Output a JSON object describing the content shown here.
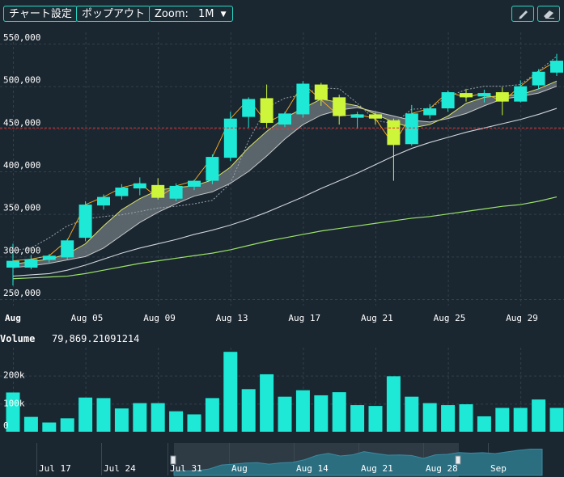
{
  "toolbar": {
    "chart_settings": "チャート設定",
    "popout": "ポップアウト",
    "zoom_label": "Zoom:",
    "zoom_value": "1M",
    "pencil_icon": "pencil-icon",
    "eraser_icon": "eraser-icon"
  },
  "colors": {
    "background": "#1a2630",
    "up": "#1de9d6",
    "down": "#cdf53a",
    "grid": "#33414b",
    "price_line": "#e53030",
    "ma_short": "#ffb020",
    "ma_mid_light": "#cfd5da",
    "ma_long": "#9be36a",
    "ribbon": "#9aa3aa"
  },
  "volume": {
    "label": "Volume",
    "value": "79,869.21091214"
  },
  "chart_data": {
    "type": "candlestick",
    "title": "",
    "y_ticks": [
      "550,000",
      "500,000",
      "450,000",
      "400,000",
      "350,000",
      "300,000",
      "250,000"
    ],
    "y_tick_values": [
      550000,
      500000,
      450000,
      400000,
      350000,
      300000,
      250000
    ],
    "ylim": [
      242000,
      558000
    ],
    "x_ticks": [
      "Aug",
      "Aug 05",
      "Aug 09",
      "Aug 13",
      "Aug 17",
      "Aug 21",
      "Aug 25",
      "Aug 29"
    ],
    "x_tick_days": [
      1,
      5,
      9,
      13,
      17,
      21,
      25,
      29
    ],
    "current_price_line": 451000,
    "candles": [
      {
        "day": 1,
        "o": 287000,
        "h": 315000,
        "l": 266000,
        "c": 295000,
        "v": 140000
      },
      {
        "day": 2,
        "o": 287000,
        "h": 302000,
        "l": 285000,
        "c": 297000,
        "v": 53000
      },
      {
        "day": 3,
        "o": 296000,
        "h": 303000,
        "l": 293000,
        "c": 301000,
        "v": 33000
      },
      {
        "day": 4,
        "o": 299000,
        "h": 321000,
        "l": 296000,
        "c": 319000,
        "v": 48000
      },
      {
        "day": 5,
        "o": 322000,
        "h": 365000,
        "l": 318000,
        "c": 361000,
        "v": 122000
      },
      {
        "day": 6,
        "o": 360000,
        "h": 373000,
        "l": 355000,
        "c": 370000,
        "v": 120000
      },
      {
        "day": 7,
        "o": 371000,
        "h": 385000,
        "l": 367000,
        "c": 381000,
        "v": 83000
      },
      {
        "day": 8,
        "o": 380000,
        "h": 393000,
        "l": 372000,
        "c": 386000,
        "v": 102000
      },
      {
        "day": 9,
        "o": 384000,
        "h": 392000,
        "l": 367000,
        "c": 369000,
        "v": 102000
      },
      {
        "day": 10,
        "o": 368000,
        "h": 386000,
        "l": 365000,
        "c": 383000,
        "v": 73000
      },
      {
        "day": 11,
        "o": 382000,
        "h": 390000,
        "l": 378000,
        "c": 389000,
        "v": 62000
      },
      {
        "day": 12,
        "o": 389000,
        "h": 420000,
        "l": 385000,
        "c": 417000,
        "v": 120000
      },
      {
        "day": 13,
        "o": 416000,
        "h": 470000,
        "l": 412000,
        "c": 462000,
        "v": 285000
      },
      {
        "day": 14,
        "o": 464000,
        "h": 487000,
        "l": 451000,
        "c": 485000,
        "v": 152000
      },
      {
        "day": 15,
        "o": 486000,
        "h": 502000,
        "l": 451000,
        "c": 457000,
        "v": 205000
      },
      {
        "day": 16,
        "o": 455000,
        "h": 470000,
        "l": 452000,
        "c": 468000,
        "v": 125000
      },
      {
        "day": 17,
        "o": 467000,
        "h": 506000,
        "l": 463000,
        "c": 503000,
        "v": 148000
      },
      {
        "day": 18,
        "o": 502000,
        "h": 504000,
        "l": 477000,
        "c": 484000,
        "v": 130000
      },
      {
        "day": 19,
        "o": 487000,
        "h": 490000,
        "l": 455000,
        "c": 465000,
        "v": 141000
      },
      {
        "day": 20,
        "o": 463000,
        "h": 470000,
        "l": 450000,
        "c": 467000,
        "v": 95000
      },
      {
        "day": 21,
        "o": 467000,
        "h": 469000,
        "l": 455000,
        "c": 462000,
        "v": 92000
      },
      {
        "day": 22,
        "o": 460000,
        "h": 462000,
        "l": 389000,
        "c": 431000,
        "v": 198000
      },
      {
        "day": 23,
        "o": 432000,
        "h": 478000,
        "l": 430000,
        "c": 468000,
        "v": 125000
      },
      {
        "day": 24,
        "o": 466000,
        "h": 479000,
        "l": 462000,
        "c": 474000,
        "v": 102000
      },
      {
        "day": 25,
        "o": 474000,
        "h": 495000,
        "l": 470000,
        "c": 493000,
        "v": 95000
      },
      {
        "day": 26,
        "o": 492000,
        "h": 497000,
        "l": 482000,
        "c": 487000,
        "v": 98000
      },
      {
        "day": 27,
        "o": 488000,
        "h": 496000,
        "l": 481000,
        "c": 492000,
        "v": 55000
      },
      {
        "day": 28,
        "o": 493000,
        "h": 499000,
        "l": 466000,
        "c": 482000,
        "v": 85000
      },
      {
        "day": 29,
        "o": 482000,
        "h": 507000,
        "l": 481000,
        "c": 500000,
        "v": 85000
      },
      {
        "day": 30,
        "o": 501000,
        "h": 520000,
        "l": 497000,
        "c": 517000,
        "v": 115000
      },
      {
        "day": 31,
        "o": 516000,
        "h": 538000,
        "l": 512000,
        "c": 530000,
        "v": 85000
      }
    ],
    "ma_short": [
      291000,
      294000,
      297000,
      303000,
      315000,
      336000,
      355000,
      368000,
      378000,
      381000,
      383000,
      390000,
      405000,
      428000,
      447000,
      463000,
      474000,
      485000,
      481000,
      477000,
      467000,
      458000,
      451000,
      455000,
      465000,
      480000,
      487000,
      489000,
      490000,
      497000,
      506000
    ],
    "ma_mid": [
      287000,
      289000,
      292000,
      296000,
      300000,
      310000,
      325000,
      340000,
      352000,
      362000,
      371000,
      376000,
      386000,
      400000,
      418000,
      438000,
      455000,
      466000,
      472000,
      475000,
      470000,
      465000,
      460000,
      458000,
      462000,
      468000,
      477000,
      485000,
      488000,
      492000,
      500000
    ],
    "ma_long": [
      277000,
      278500,
      280000,
      284000,
      290000,
      297000,
      304000,
      310000,
      315000,
      320000,
      326000,
      331000,
      337000,
      344000,
      352000,
      361000,
      370000,
      380000,
      389000,
      398000,
      408000,
      418000,
      427000,
      434000,
      440000,
      446000,
      451000,
      456000,
      461000,
      467000,
      474000
    ],
    "ma_xlong": [
      274000,
      275000,
      276000,
      277000,
      280000,
      284000,
      288000,
      292000,
      295000,
      298000,
      301000,
      304000,
      308000,
      313000,
      318000,
      322000,
      326000,
      330000,
      333000,
      336000,
      339000,
      342000,
      345000,
      347000,
      350000,
      353000,
      356000,
      359000,
      361000,
      365000,
      370000
    ],
    "envelope_upper": [
      307000,
      310000,
      322000,
      336000,
      344000,
      347000,
      349000,
      353000,
      357000,
      359000,
      362000,
      366000,
      386000,
      436000,
      475000,
      486000,
      490000,
      498000,
      497000,
      480000,
      460000,
      456000,
      473000,
      474000,
      488000,
      496000,
      500000,
      500000,
      502000,
      518000,
      535000
    ],
    "volume_axis": {
      "ticks": [
        "200k",
        "100k",
        "0"
      ],
      "tick_values": [
        200000,
        100000,
        0
      ],
      "max": 300000
    },
    "navigator": {
      "x_ticks": [
        "Jul 17",
        "Jul 24",
        "Jul 31",
        "Aug",
        "Aug 14",
        "Aug 21",
        "Aug 28",
        "Sep"
      ],
      "series_min": 250000,
      "series_max": 560000
    }
  }
}
